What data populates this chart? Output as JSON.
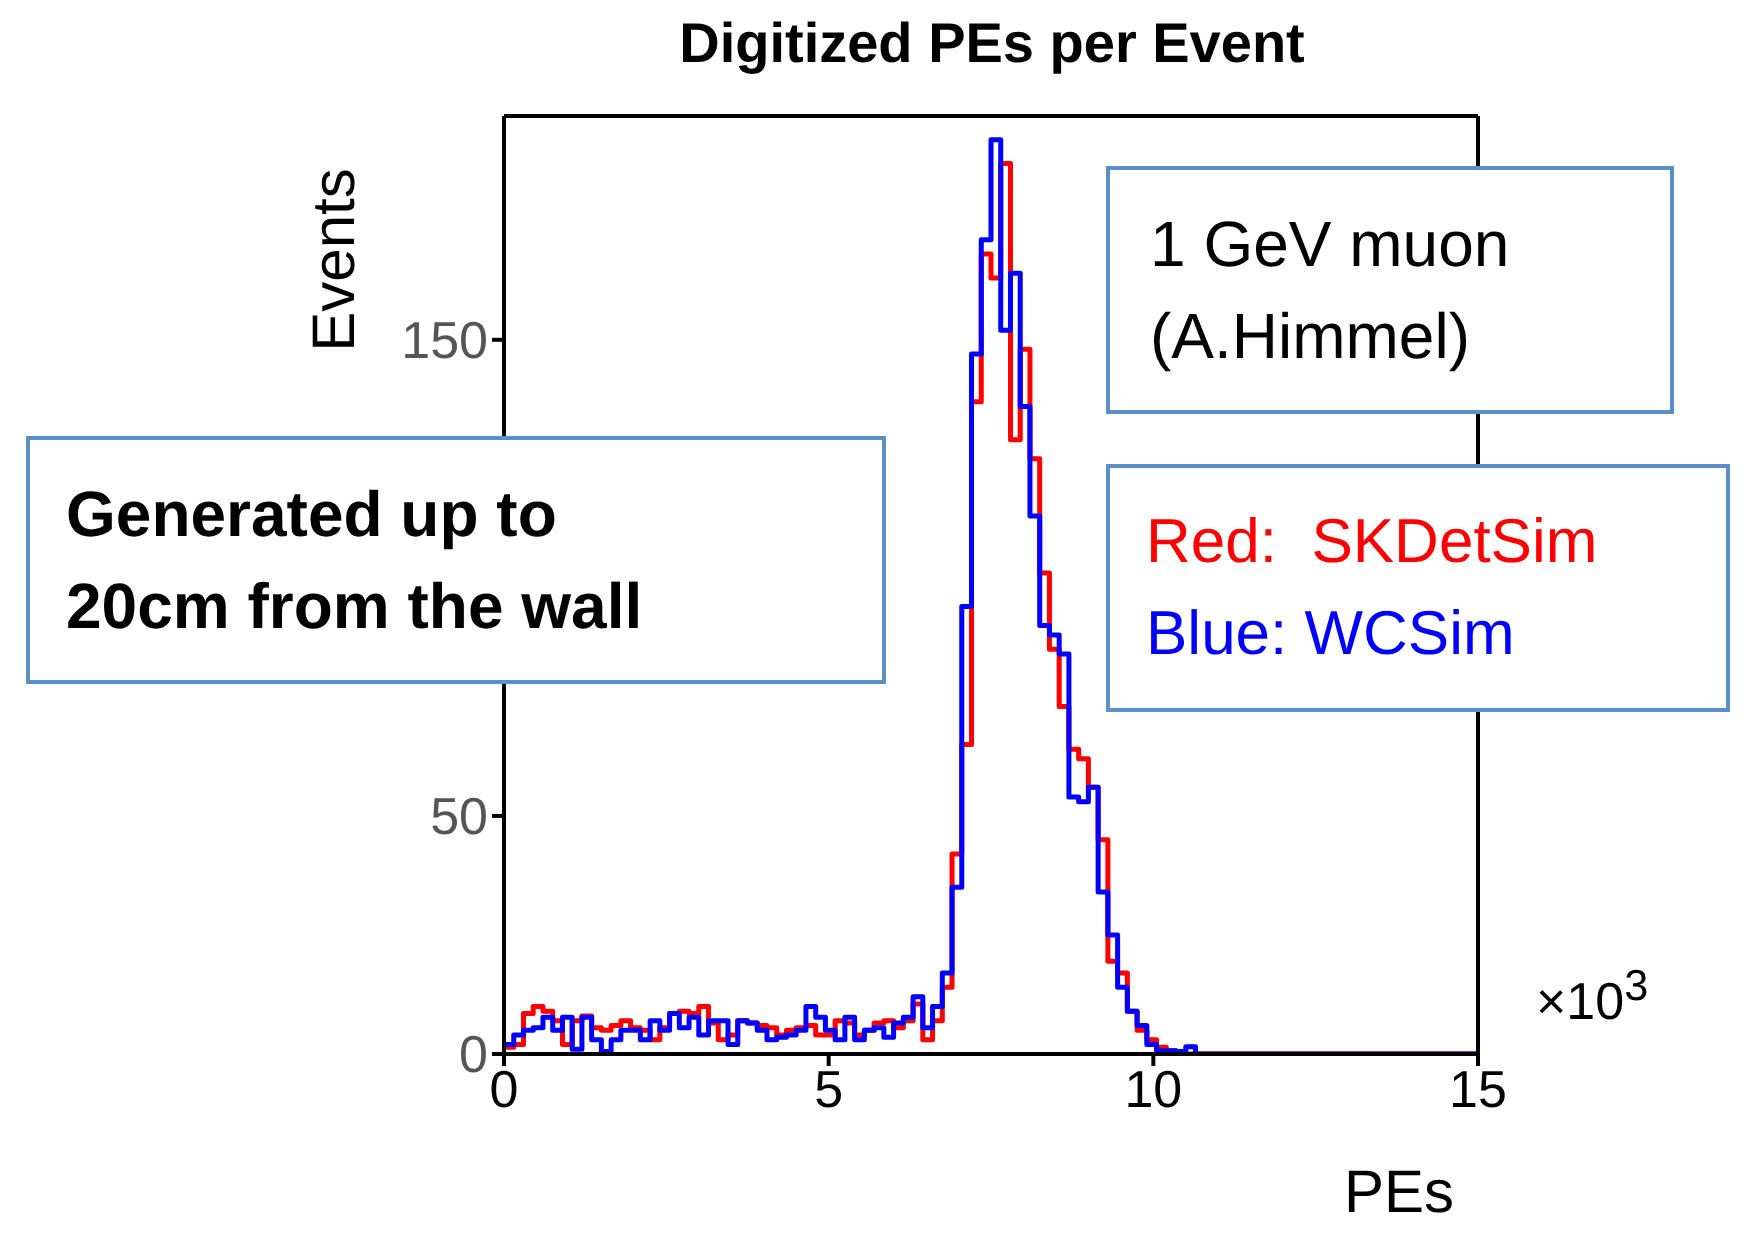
{
  "chart_data": {
    "type": "histogram",
    "title": "Digitized PEs per Event",
    "xlabel": "PEs",
    "ylabel": "Events",
    "annotations": [
      "1 GeV muon\n(A.Himmel)",
      "Generated up to\n20cm from the wall",
      "×10$^{3}$"
    ],
    "bins": [
      0,
      0.15,
      0.3,
      0.45,
      0.6,
      0.75,
      0.9,
      1.05,
      1.2,
      1.35,
      1.5,
      1.65,
      1.8,
      1.95,
      2.1,
      2.25,
      2.4,
      2.55,
      2.7,
      2.85,
      3,
      3.15,
      3.3,
      3.45,
      3.6,
      3.75,
      3.9,
      4.05,
      4.2,
      4.35,
      4.5,
      4.65,
      4.8,
      4.95,
      5.1,
      5.25,
      5.4,
      5.55,
      5.7,
      5.85,
      6,
      6.15,
      6.3,
      6.45,
      6.6,
      6.75,
      6.9,
      7.05,
      7.2,
      7.35,
      7.5,
      7.65,
      7.8,
      7.95,
      8.1,
      8.25,
      8.4,
      8.55,
      8.7,
      8.85,
      9,
      9.15,
      9.3,
      9.45,
      9.6,
      9.75,
      9.9,
      10.05,
      10.2,
      10.35,
      10.5,
      10.65,
      10.8,
      10.95,
      11.1,
      11.25,
      11.4,
      11.55,
      11.7,
      11.85,
      12,
      12.15,
      12.3,
      12.45,
      12.6,
      12.75,
      12.9,
      13.05,
      13.2,
      13.35,
      13.5,
      13.65,
      13.8,
      13.95,
      14.1,
      14.25,
      14.4,
      14.55,
      14.7,
      14.85,
      15
    ],
    "series": [
      {
        "name": "Red:  SKDetSim",
        "color": "#ff0000",
        "values": [
          1.4,
          2,
          8.5,
          10,
          9,
          7,
          2,
          7,
          8,
          5.5,
          5,
          6,
          7,
          5.5,
          5,
          3,
          5.5,
          8.5,
          9,
          8.5,
          10,
          6.5,
          3,
          4,
          7,
          6.5,
          6,
          5.5,
          4,
          5,
          5.5,
          6,
          4,
          4,
          7,
          6.5,
          4,
          5,
          6.5,
          7,
          5.5,
          7,
          10.5,
          3,
          7,
          14,
          42,
          65,
          137,
          168,
          163,
          187,
          129,
          148,
          125,
          101,
          85,
          73,
          64,
          62,
          56,
          45,
          19.5,
          17,
          9,
          5,
          3,
          1.4,
          0.7,
          0,
          0,
          0,
          0,
          0,
          0,
          0,
          0,
          0,
          0,
          0,
          0,
          0,
          0,
          0,
          0,
          0,
          0,
          0,
          0,
          0,
          0,
          0,
          0,
          0,
          0,
          0,
          0,
          0,
          0,
          0
        ]
      },
      {
        "name": "Blue: WCSim",
        "color": "#0000ff",
        "values": [
          2,
          4,
          5,
          5.5,
          7.7,
          5,
          7.7,
          1,
          7.7,
          3,
          0.5,
          3,
          5,
          5,
          3,
          7,
          5,
          8.5,
          5.5,
          7.7,
          4,
          7,
          7,
          2,
          7,
          6.5,
          5,
          3,
          3.5,
          4,
          5,
          10,
          7.7,
          5,
          3,
          7.7,
          3,
          5,
          5.5,
          3.5,
          6.5,
          7.7,
          12,
          5.5,
          10,
          17,
          35,
          94,
          147,
          171,
          192,
          152,
          164,
          136,
          113,
          90,
          88,
          84,
          54,
          53,
          56,
          34,
          25,
          14,
          9,
          6,
          2,
          0.7,
          0.7,
          0.5,
          1.5,
          0,
          0,
          0,
          0,
          0,
          0,
          0,
          0,
          0,
          0,
          0,
          0,
          0,
          0,
          0,
          0,
          0,
          0,
          0,
          0,
          0,
          0,
          0,
          0,
          0,
          0,
          0,
          0,
          0
        ]
      }
    ],
    "xlim": [
      0,
      15
    ],
    "xticks": [
      0,
      5,
      10,
      15
    ],
    "ylim": [
      0,
      197
    ],
    "yticks": [
      0,
      50,
      {
        "value": 100,
        "label": null
      },
      150
    ],
    "legend": "right"
  }
}
